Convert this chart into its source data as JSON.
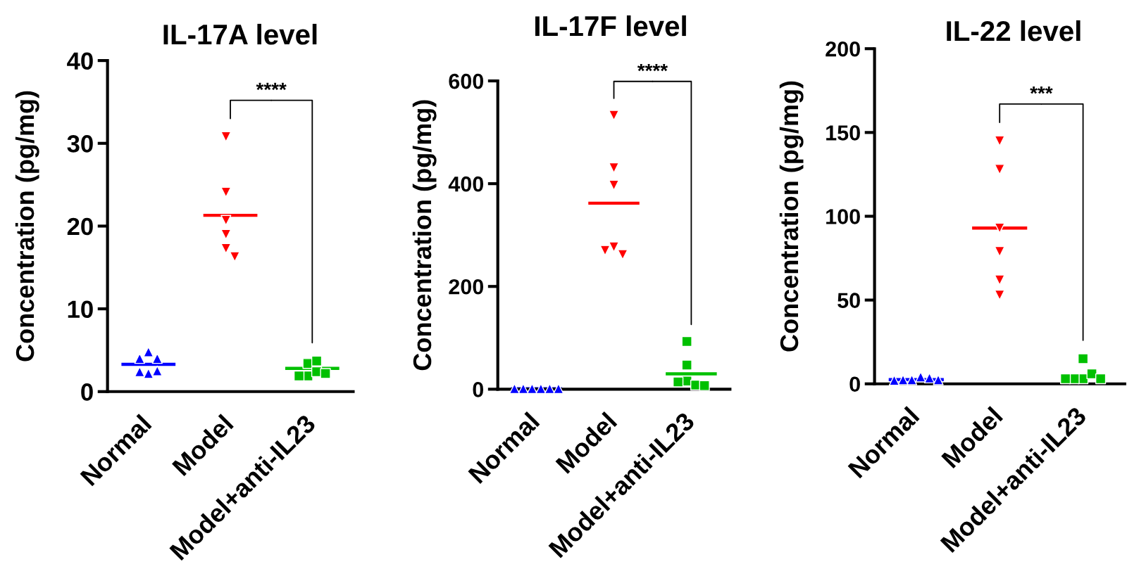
{
  "chart_data": [
    {
      "type": "scatter",
      "title": "IL-17A level",
      "ylabel": "Concentration (pg/mg)",
      "categories": [
        "Normal",
        "Model",
        "Model+anti-IL23"
      ],
      "ylim": [
        0,
        40
      ],
      "yticks": [
        0,
        10,
        20,
        30,
        40
      ],
      "series": [
        {
          "marker": "triangle",
          "color": "#0000ff",
          "x": [
            "Normal",
            "Normal",
            "Normal",
            "Normal",
            "Normal",
            "Normal"
          ],
          "values": [
            4.8,
            2.2,
            4.0,
            2.5,
            4.0,
            2.4
          ]
        },
        {
          "marker": "triangle-down",
          "color": "#ff0000",
          "x": [
            "Model",
            "Model",
            "Model",
            "Model",
            "Model",
            "Model"
          ],
          "values": [
            30.8,
            24.1,
            20.7,
            19.0,
            17.3,
            16.3
          ]
        },
        {
          "marker": "square",
          "color": "#00c000",
          "x": [
            "Model+anti-IL23",
            "Model+anti-IL23",
            "Model+anti-IL23",
            "Model+anti-IL23",
            "Model+anti-IL23",
            "Model+anti-IL23"
          ],
          "values": [
            3.4,
            1.9,
            2.4,
            3.7,
            1.9,
            2.2
          ]
        }
      ],
      "ref_lines": [
        {
          "axis": "y",
          "value": 3.3,
          "color": "#0000ff"
        },
        {
          "axis": "y",
          "value": 21.3,
          "color": "#ff0000"
        },
        {
          "axis": "y",
          "value": 2.8,
          "color": "#00c000"
        }
      ],
      "annotations": [
        "****"
      ]
    },
    {
      "type": "scatter",
      "title": "IL-17F level",
      "ylabel": "Concentration (pg/mg)",
      "categories": [
        "Normal",
        "Model",
        "Model+anti-IL23"
      ],
      "ylim": [
        0,
        600
      ],
      "yticks": [
        0,
        200,
        400,
        600
      ],
      "series": [
        {
          "marker": "triangle",
          "color": "#0000ff",
          "x": [
            "Normal",
            "Normal",
            "Normal",
            "Normal",
            "Normal",
            "Normal"
          ],
          "values": [
            1,
            1,
            1,
            1,
            1,
            1
          ]
        },
        {
          "marker": "triangle-down",
          "color": "#ff0000",
          "x": [
            "Model",
            "Model",
            "Model",
            "Model",
            "Model",
            "Model"
          ],
          "values": [
            533,
            431,
            397,
            277,
            262,
            270
          ]
        },
        {
          "marker": "square",
          "color": "#00c000",
          "x": [
            "Model+anti-IL23",
            "Model+anti-IL23",
            "Model+anti-IL23",
            "Model+anti-IL23",
            "Model+anti-IL23",
            "Model+anti-IL23"
          ],
          "values": [
            16,
            8,
            93,
            47,
            14,
            7
          ]
        }
      ],
      "ref_lines": [
        {
          "axis": "y",
          "value": 1,
          "color": "#0000ff"
        },
        {
          "axis": "y",
          "value": 362,
          "color": "#ff0000"
        },
        {
          "axis": "y",
          "value": 30,
          "color": "#00c000"
        }
      ],
      "annotations": [
        "****"
      ]
    },
    {
      "type": "scatter",
      "title": "IL-22 level",
      "ylabel": "Concentration (pg/mg)",
      "categories": [
        "Normal",
        "Model",
        "Model+anti-IL23"
      ],
      "ylim": [
        0,
        200
      ],
      "yticks": [
        0,
        50,
        100,
        150,
        200
      ],
      "series": [
        {
          "marker": "triangle",
          "color": "#0000ff",
          "x": [
            "Normal",
            "Normal",
            "Normal",
            "Normal",
            "Normal",
            "Normal"
          ],
          "values": [
            2.4,
            4.1,
            2.4,
            3.5,
            2.1,
            2.4
          ]
        },
        {
          "marker": "triangle-down",
          "color": "#ff0000",
          "x": [
            "Model",
            "Model",
            "Model",
            "Model",
            "Model",
            "Model"
          ],
          "values": [
            145,
            128,
            93,
            79,
            62,
            53
          ]
        },
        {
          "marker": "square",
          "color": "#00c000",
          "x": [
            "Model+anti-IL23",
            "Model+anti-IL23",
            "Model+anti-IL23",
            "Model+anti-IL23",
            "Model+anti-IL23",
            "Model+anti-IL23"
          ],
          "values": [
            3,
            6,
            15,
            3,
            3,
            3
          ]
        }
      ],
      "ref_lines": [
        {
          "axis": "y",
          "value": 2.5,
          "color": "#0000ff"
        },
        {
          "axis": "y",
          "value": 93,
          "color": "#ff0000"
        }
      ],
      "annotations": [
        "***"
      ]
    }
  ]
}
